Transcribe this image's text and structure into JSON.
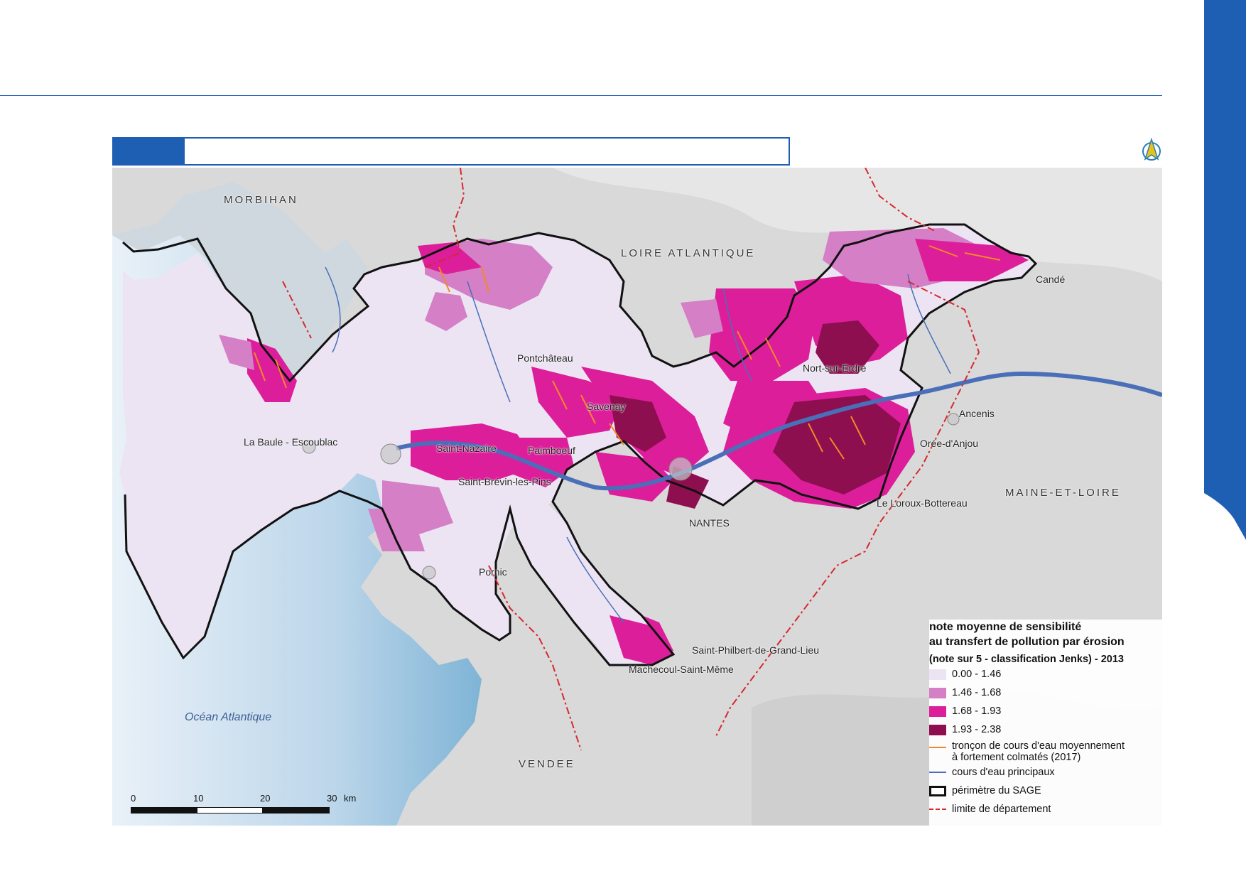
{
  "header": {
    "title": "",
    "accent_color": "#1f5fb3"
  },
  "map": {
    "departments": {
      "morbihan": "MORBIHAN",
      "loire_atlantique": "LOIRE ATLANTIQUE",
      "maine_et_loire": "MAINE-ET-LOIRE",
      "vendee": "VENDEE"
    },
    "sea_label": "Océan Atlantique",
    "towns": {
      "nantes": "NANTES",
      "saint_nazaire": "Saint-Nazaire",
      "la_baule": "La Baule - Escoublac",
      "pontchateau": "Pontchâteau",
      "savenay": "Savenay",
      "paimboeuf": "Paimboeuf",
      "saint_brevin": "Saint-Brévin-les-Pins",
      "pornic": "Pornic",
      "nort_sur_erdre": "Nort-sur-Erdre",
      "ancenis": "Ancenis",
      "oree_d_anjou": "Orée-d'Anjou",
      "le_loroux": "Le Loroux-Bottereau",
      "cande": "Candé",
      "saint_philbert": "Saint-Philbert-de-Grand-Lieu",
      "machecoul": "Machecoul-Saint-Même"
    },
    "colors": {
      "class1": "#ece4f2",
      "class2": "#d57fc6",
      "class3": "#dd1e9b",
      "class4": "#8e0f50",
      "colmate": "#f08a24",
      "river": "#4a6fb8",
      "sage": "#111111",
      "dept_limit": "#d6282e"
    }
  },
  "legend": {
    "title_line1": "note moyenne de sensibilité",
    "title_line2": "au transfert de pollution par érosion",
    "subtitle": "(note sur 5 - classification Jenks) - 2013",
    "classes": [
      "0.00 - 1.46",
      "1.46 - 1.68",
      "1.68 - 1.93",
      "1.93 - 2.38"
    ],
    "colmate_line1": "tronçon de cours d'eau moyennement",
    "colmate_line2": "à fortement colmatés (2017)",
    "river": "cours d'eau principaux",
    "sage": "périmètre du SAGE",
    "dept_limit": "limite de département"
  },
  "scale_bar": {
    "ticks": [
      "0",
      "10",
      "20",
      "30"
    ],
    "unit": "km"
  }
}
